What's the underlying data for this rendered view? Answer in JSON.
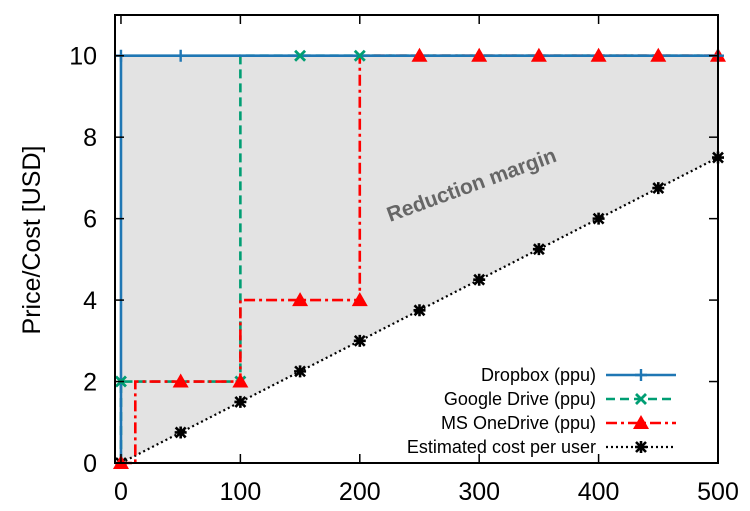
{
  "chart_data": {
    "type": "line",
    "title": "",
    "xlabel": "",
    "ylabel": "Price/Cost [USD]",
    "xlim": [
      -5,
      500
    ],
    "ylim": [
      0,
      11
    ],
    "xticks": [
      0,
      100,
      200,
      300,
      400,
      500
    ],
    "yticks": [
      0,
      2,
      4,
      6,
      8,
      10
    ],
    "tick_labels_x": [
      "0",
      "100",
      "200",
      "300",
      "400",
      "500"
    ],
    "tick_labels_y": [
      "0",
      "2",
      "4",
      "6",
      "8",
      "10"
    ],
    "grid": false,
    "legend_position": "bottom-right",
    "annotation": "Reduction margin",
    "shaded_region": "between estimated cost per user and maximum price",
    "series": [
      {
        "name": "Dropbox (ppu)",
        "color": "#1f77b4",
        "dash": "solid",
        "marker": "plus",
        "x": [
          0,
          0,
          50,
          500
        ],
        "y": [
          0,
          10,
          10,
          10
        ],
        "marker_x": [
          0,
          50,
          500
        ],
        "marker_y": [
          10,
          10,
          10
        ]
      },
      {
        "name": "Google Drive (ppu)",
        "color": "#009e73",
        "dash": "dashed",
        "marker": "cross",
        "x": [
          0,
          0,
          100,
          100,
          150,
          200,
          500
        ],
        "y": [
          0,
          2,
          2,
          10,
          10,
          10,
          10
        ],
        "marker_x": [
          0,
          100,
          150,
          200
        ],
        "marker_y": [
          2,
          2,
          10,
          10
        ]
      },
      {
        "name": "MS OneDrive (ppu)",
        "color": "#ff0000",
        "dash": "dashdot",
        "marker": "triangle",
        "x": [
          0,
          12,
          12,
          50,
          100,
          100,
          150,
          200,
          200,
          250,
          300,
          350,
          400,
          450,
          500
        ],
        "y": [
          0,
          0,
          2,
          2,
          2,
          4,
          4,
          4,
          10,
          10,
          10,
          10,
          10,
          10,
          10
        ],
        "marker_x": [
          0,
          50,
          100,
          150,
          200,
          250,
          300,
          350,
          400,
          450,
          500
        ],
        "marker_y": [
          0,
          2,
          2,
          4,
          4,
          10,
          10,
          10,
          10,
          10,
          10
        ]
      },
      {
        "name": "Estimated cost per user",
        "color": "#000000",
        "dash": "dotted",
        "marker": "star",
        "x": [
          0,
          50,
          100,
          150,
          200,
          250,
          300,
          350,
          400,
          450,
          500
        ],
        "y": [
          0,
          0.75,
          1.5,
          2.25,
          3.0,
          3.75,
          4.5,
          5.25,
          6.0,
          6.75,
          7.5
        ],
        "marker_x": [
          0,
          50,
          100,
          150,
          200,
          250,
          300,
          350,
          400,
          450,
          500
        ],
        "marker_y": [
          0,
          0.75,
          1.5,
          2.25,
          3.0,
          3.75,
          4.5,
          5.25,
          6.0,
          6.75,
          7.5
        ]
      }
    ]
  }
}
